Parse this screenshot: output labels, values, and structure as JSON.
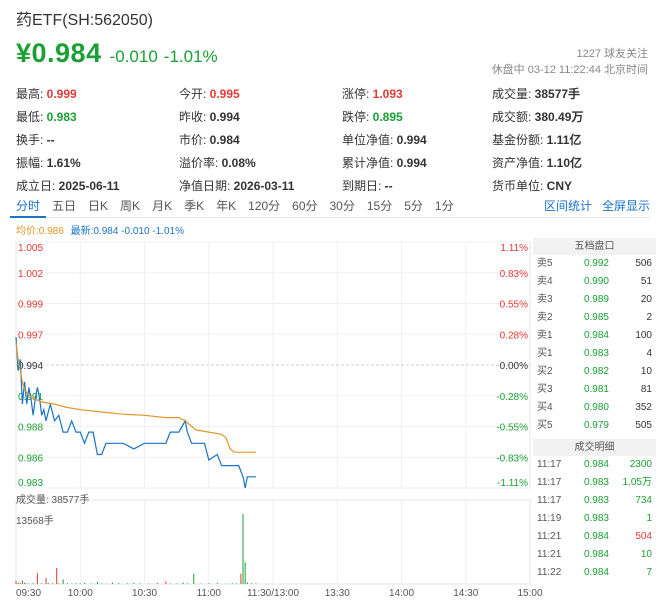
{
  "header": {
    "title": "药ETF(SH:562050)",
    "price": "¥0.984",
    "change": "-0.010",
    "change_pct": "-1.01%",
    "followers": "1227 球友关注",
    "status": "休盘中 03-12 11:22:44 北京时间"
  },
  "stats": [
    [
      {
        "label": "最高:",
        "value": "0.999",
        "color": "red"
      },
      {
        "label": "今开:",
        "value": "0.995",
        "color": "red"
      },
      {
        "label": "涨停:",
        "value": "1.093",
        "color": "red"
      },
      {
        "label": "成交量:",
        "value": "38577手",
        "color": ""
      }
    ],
    [
      {
        "label": "最低:",
        "value": "0.983",
        "color": "green"
      },
      {
        "label": "昨收:",
        "value": "0.994",
        "color": ""
      },
      {
        "label": "跌停:",
        "value": "0.895",
        "color": "green"
      },
      {
        "label": "成交额:",
        "value": "380.49万",
        "color": ""
      }
    ],
    [
      {
        "label": "换手:",
        "value": "--",
        "color": ""
      },
      {
        "label": "市价:",
        "value": "0.984",
        "color": ""
      },
      {
        "label": "单位净值:",
        "value": "0.994",
        "color": ""
      },
      {
        "label": "基金份额:",
        "value": "1.11亿",
        "color": ""
      }
    ],
    [
      {
        "label": "振幅:",
        "value": "1.61%",
        "color": ""
      },
      {
        "label": "溢价率:",
        "value": "0.08%",
        "color": ""
      },
      {
        "label": "累计净值:",
        "value": "0.994",
        "color": ""
      },
      {
        "label": "资产净值:",
        "value": "1.10亿",
        "color": ""
      }
    ],
    [
      {
        "label": "成立日:",
        "value": "2025-06-11",
        "color": ""
      },
      {
        "label": "净值日期:",
        "value": "2026-03-11",
        "color": ""
      },
      {
        "label": "到期日:",
        "value": "--",
        "color": ""
      },
      {
        "label": "货币单位:",
        "value": "CNY",
        "color": ""
      }
    ]
  ],
  "tabs": [
    "分时",
    "五日",
    "日K",
    "周K",
    "月K",
    "季K",
    "年K",
    "120分",
    "60分",
    "30分",
    "15分",
    "5分",
    "1分"
  ],
  "active_tab": 0,
  "tabs_right": [
    "区间统计",
    "全屏显示"
  ],
  "legend": {
    "avg": "均价:0.986",
    "latest": "最新:0.984 -0.010 -1.01%"
  },
  "volume": {
    "label": "成交量: 38577手",
    "max": "13568手"
  },
  "colors": {
    "up": "#e53935",
    "down": "#1aa034",
    "line": "#1a73c7",
    "avg": "#e0962a",
    "accent": "#1a73c7"
  },
  "order_book": {
    "title": "五档盘口",
    "rows": [
      {
        "side": "卖5",
        "price": "0.992",
        "vol": "506",
        "color": "green"
      },
      {
        "side": "卖4",
        "price": "0.990",
        "vol": "51",
        "color": "green"
      },
      {
        "side": "卖3",
        "price": "0.989",
        "vol": "20",
        "color": "green"
      },
      {
        "side": "卖2",
        "price": "0.985",
        "vol": "2",
        "color": "green"
      },
      {
        "side": "卖1",
        "price": "0.984",
        "vol": "100",
        "color": "green"
      },
      {
        "side": "买1",
        "price": "0.983",
        "vol": "4",
        "color": "green"
      },
      {
        "side": "买2",
        "price": "0.982",
        "vol": "10",
        "color": "green"
      },
      {
        "side": "买3",
        "price": "0.981",
        "vol": "81",
        "color": "green"
      },
      {
        "side": "买4",
        "price": "0.980",
        "vol": "352",
        "color": "green"
      },
      {
        "side": "买5",
        "price": "0.979",
        "vol": "505",
        "color": "green"
      }
    ]
  },
  "trades": {
    "title": "成交明细",
    "rows": [
      {
        "time": "11:17",
        "price": "0.984",
        "vol": "2300",
        "vcolor": "green"
      },
      {
        "time": "11:17",
        "price": "0.983",
        "vol": "1.05万",
        "vcolor": "green"
      },
      {
        "time": "11:17",
        "price": "0.983",
        "vol": "734",
        "vcolor": "green"
      },
      {
        "time": "11:19",
        "price": "0.983",
        "vol": "1",
        "vcolor": "green"
      },
      {
        "time": "11:21",
        "price": "0.984",
        "vol": "504",
        "vcolor": "red"
      },
      {
        "time": "11:21",
        "price": "0.984",
        "vol": "10",
        "vcolor": "green"
      },
      {
        "time": "11:22",
        "price": "0.984",
        "vol": "7",
        "vcolor": "green"
      }
    ]
  },
  "chart_data": {
    "type": "line",
    "y_ticks_left": [
      "1.005",
      "1.002",
      "0.999",
      "0.997",
      "0.994",
      "0.991",
      "0.988",
      "0.986",
      "0.983"
    ],
    "y_ticks_right": [
      "1.11%",
      "0.83%",
      "0.55%",
      "0.28%",
      "0.00%",
      "-0.28%",
      "-0.55%",
      "-0.83%",
      "-1.11%"
    ],
    "ylim": [
      0.983,
      1.005
    ],
    "prev_close": 0.994,
    "x_ticks": [
      "09:30",
      "10:00",
      "10:30",
      "11:00",
      "11:30/13:00",
      "13:30",
      "14:00",
      "14:30",
      "15:00"
    ],
    "series": [
      {
        "name": "最新",
        "points": [
          [
            0,
            0.9965
          ],
          [
            1,
            0.9935
          ],
          [
            2,
            0.9945
          ],
          [
            3,
            0.9905
          ],
          [
            4,
            0.9925
          ],
          [
            5,
            0.9905
          ],
          [
            6,
            0.992
          ],
          [
            7,
            0.991
          ],
          [
            8,
            0.9895
          ],
          [
            9,
            0.991
          ],
          [
            10,
            0.992
          ],
          [
            11,
            0.991
          ],
          [
            12,
            0.9895
          ],
          [
            13,
            0.99
          ],
          [
            14,
            0.989
          ],
          [
            16,
            0.9905
          ],
          [
            18,
            0.989
          ],
          [
            20,
            0.9895
          ],
          [
            22,
            0.988
          ],
          [
            24,
            0.988
          ],
          [
            26,
            0.989
          ],
          [
            28,
            0.988
          ],
          [
            30,
            0.988
          ],
          [
            32,
            0.987
          ],
          [
            34,
            0.988
          ],
          [
            36,
            0.988
          ],
          [
            38,
            0.986
          ],
          [
            40,
            0.986
          ],
          [
            42,
            0.987
          ],
          [
            45,
            0.987
          ],
          [
            50,
            0.987
          ],
          [
            55,
            0.9865
          ],
          [
            60,
            0.987
          ],
          [
            65,
            0.987
          ],
          [
            70,
            0.987
          ],
          [
            72,
            0.988
          ],
          [
            76,
            0.988
          ],
          [
            79,
            0.989
          ],
          [
            80,
            0.988
          ],
          [
            82,
            0.987
          ],
          [
            84,
            0.987
          ],
          [
            88,
            0.987
          ],
          [
            90,
            0.9855
          ],
          [
            94,
            0.986
          ],
          [
            96,
            0.985
          ],
          [
            100,
            0.985
          ],
          [
            104,
            0.985
          ],
          [
            106,
            0.984
          ],
          [
            107,
            0.983
          ],
          [
            108,
            0.984
          ],
          [
            112,
            0.984
          ]
        ]
      },
      {
        "name": "均价",
        "points": [
          [
            0,
            0.996
          ],
          [
            1,
            0.9945
          ],
          [
            2,
            0.9935
          ],
          [
            3,
            0.9925
          ],
          [
            4,
            0.9918
          ],
          [
            6,
            0.9913
          ],
          [
            8,
            0.991
          ],
          [
            12,
            0.9907
          ],
          [
            18,
            0.9905
          ],
          [
            24,
            0.9902
          ],
          [
            30,
            0.99
          ],
          [
            40,
            0.9898
          ],
          [
            50,
            0.9896
          ],
          [
            60,
            0.9895
          ],
          [
            70,
            0.9893
          ],
          [
            76,
            0.9893
          ],
          [
            79,
            0.989
          ],
          [
            84,
            0.9882
          ],
          [
            90,
            0.988
          ],
          [
            96,
            0.9878
          ],
          [
            98,
            0.9875
          ],
          [
            100,
            0.9865
          ],
          [
            102,
            0.9862
          ],
          [
            112,
            0.9862
          ]
        ]
      }
    ],
    "volume_bars": [
      [
        0,
        620,
        "red"
      ],
      [
        1,
        300,
        "green"
      ],
      [
        2,
        180,
        "green"
      ],
      [
        3,
        700,
        "red"
      ],
      [
        4,
        260,
        "green"
      ],
      [
        5,
        120,
        "green"
      ],
      [
        6,
        80,
        "green"
      ],
      [
        8,
        150,
        "green"
      ],
      [
        10,
        2100,
        "red"
      ],
      [
        12,
        140,
        "green"
      ],
      [
        14,
        1200,
        "red"
      ],
      [
        15,
        200,
        "green"
      ],
      [
        17,
        160,
        "green"
      ],
      [
        19,
        3100,
        "red"
      ],
      [
        20,
        120,
        "green"
      ],
      [
        22,
        900,
        "green"
      ],
      [
        24,
        150,
        "green"
      ],
      [
        26,
        80,
        "green"
      ],
      [
        28,
        130,
        "green"
      ],
      [
        30,
        110,
        "green"
      ],
      [
        32,
        180,
        "green"
      ],
      [
        35,
        100,
        "green"
      ],
      [
        38,
        450,
        "green"
      ],
      [
        40,
        120,
        "green"
      ],
      [
        42,
        90,
        "green"
      ],
      [
        45,
        300,
        "green"
      ],
      [
        48,
        180,
        "green"
      ],
      [
        52,
        130,
        "green"
      ],
      [
        55,
        220,
        "green"
      ],
      [
        58,
        110,
        "green"
      ],
      [
        62,
        90,
        "green"
      ],
      [
        66,
        180,
        "green"
      ],
      [
        70,
        520,
        "red"
      ],
      [
        72,
        120,
        "green"
      ],
      [
        75,
        90,
        "green"
      ],
      [
        78,
        300,
        "green"
      ],
      [
        80,
        120,
        "green"
      ],
      [
        83,
        2000,
        "green"
      ],
      [
        86,
        100,
        "green"
      ],
      [
        90,
        130,
        "green"
      ],
      [
        94,
        180,
        "green"
      ],
      [
        98,
        80,
        "green"
      ],
      [
        101,
        150,
        "green"
      ],
      [
        103,
        90,
        "green"
      ],
      [
        105,
        2000,
        "red"
      ],
      [
        106,
        13568,
        "green"
      ],
      [
        107,
        4200,
        "green"
      ],
      [
        108,
        320,
        "green"
      ],
      [
        110,
        140,
        "green"
      ],
      [
        112,
        110,
        "green"
      ]
    ],
    "volume_max": 13568
  }
}
